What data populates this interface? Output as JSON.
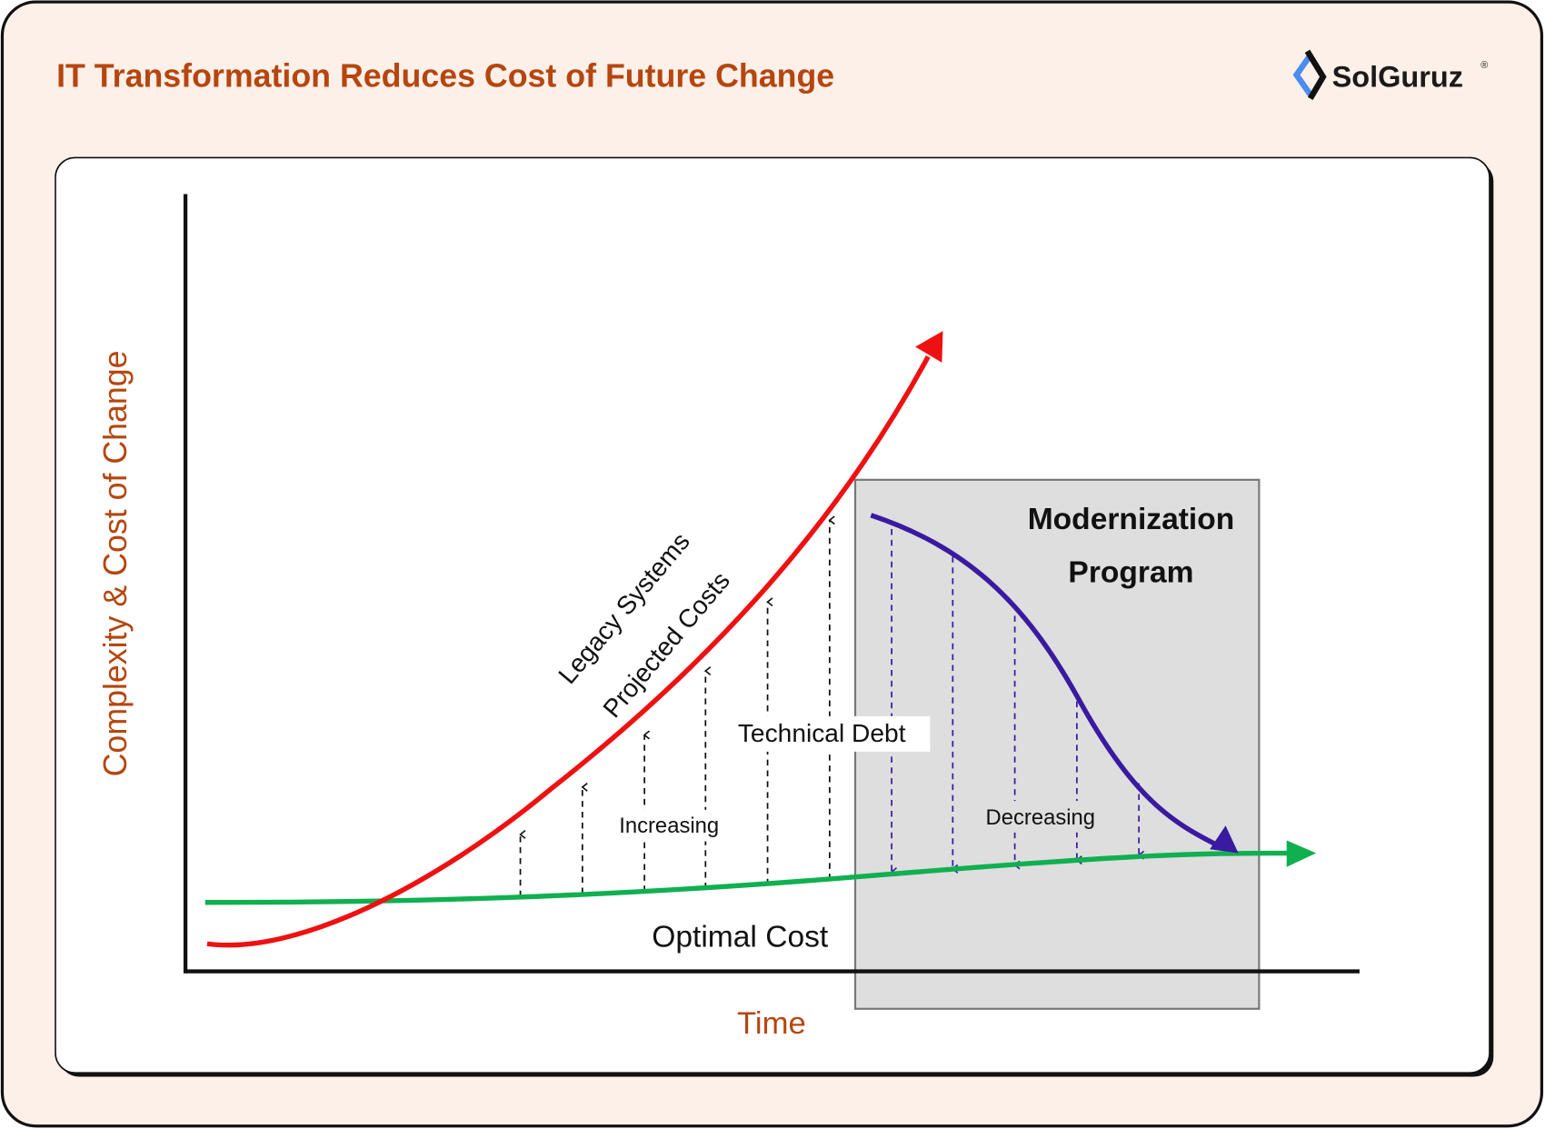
{
  "header": {
    "title": "IT Transformation Reduces Cost of Future Change",
    "logo_text": "SolGuruz",
    "logo_mark": "®"
  },
  "colors": {
    "background": "#fdf0e8",
    "accent": "#b5460f",
    "legacy_curve": "#ee1111",
    "optimal_curve": "#10b050",
    "modernization_curve": "#3a1aa0",
    "modernization_box": "#dedede",
    "logo_blue": "#4a8cf0"
  },
  "diagram": {
    "y_axis_label": "Complexity & Cost of Change",
    "x_axis_label": "Time",
    "legacy_label_line1": "Legacy Systems",
    "legacy_label_line2": "Projected Costs",
    "technical_debt_label": "Technical Debt",
    "increasing_label": "Increasing",
    "decreasing_label": "Decreasing",
    "optimal_cost_label": "Optimal Cost",
    "modernization_line1": "Modernization",
    "modernization_line2": "Program"
  }
}
